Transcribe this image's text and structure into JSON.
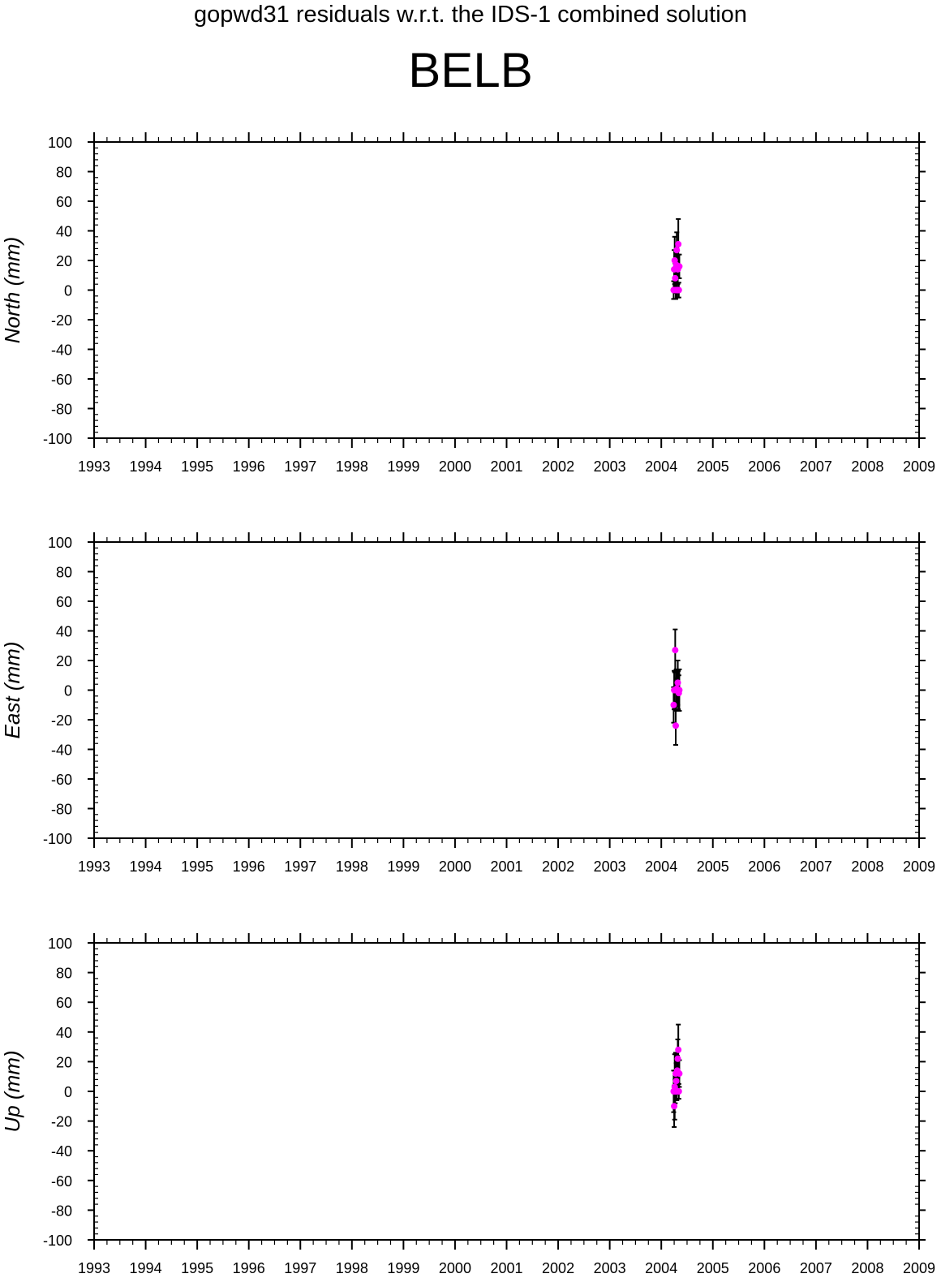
{
  "title": "gopwd31 residuals w.r.t. the IDS-1 combined solution",
  "station": "BELB",
  "colors": {
    "axis": "#000000",
    "point": "#ff00ff",
    "errorbar": "#000000"
  },
  "chart_data": [
    {
      "type": "scatter",
      "xlabel": "",
      "ylabel": "North (mm)",
      "xlim": [
        1993,
        2009
      ],
      "ylim": [
        -100,
        100
      ],
      "xticks": [
        "1993",
        "1994",
        "1995",
        "1996",
        "1997",
        "1998",
        "1999",
        "2000",
        "2001",
        "2002",
        "2003",
        "2004",
        "2005",
        "2006",
        "2007",
        "2008",
        "2009"
      ],
      "yticks": [
        "100",
        "80",
        "60",
        "40",
        "20",
        "0",
        "-20",
        "-40",
        "-60",
        "-80",
        "-100"
      ],
      "grid": false,
      "points": [
        {
          "x": 2004.24,
          "y": 0,
          "err": 6
        },
        {
          "x": 2004.25,
          "y": 14,
          "err": 13
        },
        {
          "x": 2004.26,
          "y": 20,
          "err": 16
        },
        {
          "x": 2004.27,
          "y": 8,
          "err": 10
        },
        {
          "x": 2004.28,
          "y": 0,
          "err": 6
        },
        {
          "x": 2004.29,
          "y": 17,
          "err": 9
        },
        {
          "x": 2004.3,
          "y": 27,
          "err": 12
        },
        {
          "x": 2004.31,
          "y": 0,
          "err": 5
        },
        {
          "x": 2004.32,
          "y": 14,
          "err": 10
        },
        {
          "x": 2004.33,
          "y": 31,
          "err": 17
        },
        {
          "x": 2004.34,
          "y": 0,
          "err": 5
        },
        {
          "x": 2004.35,
          "y": 16,
          "err": 8
        }
      ]
    },
    {
      "type": "scatter",
      "xlabel": "",
      "ylabel": "East (mm)",
      "xlim": [
        1993,
        2009
      ],
      "ylim": [
        -100,
        100
      ],
      "xticks": [
        "1993",
        "1994",
        "1995",
        "1996",
        "1997",
        "1998",
        "1999",
        "2000",
        "2001",
        "2002",
        "2003",
        "2004",
        "2005",
        "2006",
        "2007",
        "2008",
        "2009"
      ],
      "yticks": [
        "100",
        "80",
        "60",
        "40",
        "20",
        "0",
        "-20",
        "-40",
        "-60",
        "-80",
        "-100"
      ],
      "grid": false,
      "points": [
        {
          "x": 2004.24,
          "y": -10,
          "err": 12
        },
        {
          "x": 2004.25,
          "y": 0,
          "err": 13
        },
        {
          "x": 2004.26,
          "y": 0,
          "err": 12
        },
        {
          "x": 2004.27,
          "y": 27,
          "err": 14
        },
        {
          "x": 2004.28,
          "y": -24,
          "err": 13
        },
        {
          "x": 2004.29,
          "y": 0,
          "err": 14
        },
        {
          "x": 2004.3,
          "y": 1,
          "err": 12
        },
        {
          "x": 2004.31,
          "y": 0,
          "err": 8
        },
        {
          "x": 2004.32,
          "y": 5,
          "err": 15
        },
        {
          "x": 2004.33,
          "y": 0,
          "err": 13
        },
        {
          "x": 2004.34,
          "y": -2,
          "err": 12
        },
        {
          "x": 2004.35,
          "y": 0,
          "err": 14
        }
      ]
    },
    {
      "type": "scatter",
      "xlabel": "",
      "ylabel": "Up (mm)",
      "xlim": [
        1993,
        2009
      ],
      "ylim": [
        -100,
        100
      ],
      "xticks": [
        "1993",
        "1994",
        "1995",
        "1996",
        "1997",
        "1998",
        "1999",
        "2000",
        "2001",
        "2002",
        "2003",
        "2004",
        "2005",
        "2006",
        "2007",
        "2008",
        "2009"
      ],
      "yticks": [
        "100",
        "80",
        "60",
        "40",
        "20",
        "0",
        "-20",
        "-40",
        "-60",
        "-80",
        "-100"
      ],
      "grid": false,
      "points": [
        {
          "x": 2004.24,
          "y": 0,
          "err": 14
        },
        {
          "x": 2004.25,
          "y": -10,
          "err": 14
        },
        {
          "x": 2004.26,
          "y": 3,
          "err": 22
        },
        {
          "x": 2004.27,
          "y": 0,
          "err": 8
        },
        {
          "x": 2004.28,
          "y": 12,
          "err": 14
        },
        {
          "x": 2004.29,
          "y": 7,
          "err": 12
        },
        {
          "x": 2004.3,
          "y": 0,
          "err": 6
        },
        {
          "x": 2004.31,
          "y": 14,
          "err": 10
        },
        {
          "x": 2004.32,
          "y": 22,
          "err": 13
        },
        {
          "x": 2004.33,
          "y": 28,
          "err": 17
        },
        {
          "x": 2004.34,
          "y": 0,
          "err": 5
        },
        {
          "x": 2004.35,
          "y": 12,
          "err": 9
        }
      ]
    }
  ]
}
